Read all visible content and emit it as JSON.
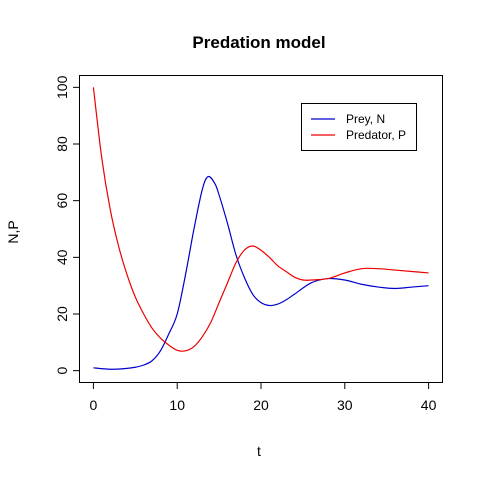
{
  "chart_data": {
    "type": "line",
    "title": "Predation model",
    "xlabel": "t",
    "ylabel": "N,P",
    "xlim": [
      -1.6,
      41.6
    ],
    "ylim": [
      -4,
      104
    ],
    "xticks": [
      0,
      10,
      20,
      30,
      40
    ],
    "yticks": [
      0,
      20,
      40,
      60,
      80,
      100
    ],
    "grid": false,
    "legend": "top-right",
    "series": [
      {
        "name": "Prey, N",
        "color": "#0000cc",
        "x": [
          0,
          2,
          4,
          5,
          6,
          7,
          8,
          9,
          10,
          11,
          12,
          13,
          13.7,
          14.5,
          15,
          16,
          17,
          18,
          19,
          20,
          21,
          22,
          23,
          24,
          26,
          28,
          30,
          32,
          34,
          36,
          38,
          40
        ],
        "y": [
          1,
          0.5,
          0.8,
          1.2,
          2,
          3.5,
          7,
          13,
          20,
          34,
          50,
          64,
          68.5,
          66,
          62,
          52,
          41,
          33,
          27,
          24,
          23,
          23.5,
          25,
          27,
          31,
          32.5,
          32,
          30.5,
          29.5,
          29,
          29.5,
          30
        ]
      },
      {
        "name": "Predator, P",
        "color": "#ee0000",
        "x": [
          0,
          1,
          2,
          3,
          4,
          5,
          6,
          7,
          8,
          9,
          10,
          11,
          12,
          13,
          14,
          15,
          16,
          17,
          18,
          19,
          20,
          21,
          22,
          23,
          24,
          25,
          26,
          28,
          30,
          32,
          34,
          36,
          38,
          40
        ],
        "y": [
          100,
          75,
          57,
          44,
          34,
          26,
          20,
          15,
          11.5,
          9,
          7.2,
          7,
          8.5,
          12,
          17,
          24,
          31,
          38,
          42.5,
          44,
          42.5,
          40,
          37,
          35,
          33,
          32,
          32,
          32.5,
          34.5,
          36,
          36,
          35.5,
          35,
          34.5
        ]
      }
    ]
  }
}
